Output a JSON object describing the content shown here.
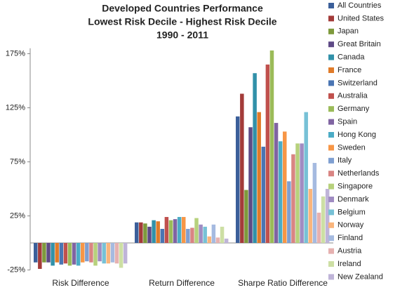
{
  "chart_data": {
    "type": "bar",
    "title": [
      "Developed Countries Performance",
      "Lowest Risk Decile - Highest Risk Decile",
      "1990 - 2011"
    ],
    "categories": [
      "Risk Difference",
      "Return Difference",
      "Sharpe Ratio Difference"
    ],
    "ylim": [
      -25,
      180
    ],
    "yticks": [
      {
        "value": -25,
        "label": "-25%"
      },
      {
        "value": 25,
        "label": "25%"
      },
      {
        "value": 75,
        "label": "75%"
      },
      {
        "value": 125,
        "label": "125%"
      },
      {
        "value": 175,
        "label": "175%"
      }
    ],
    "grid": false,
    "legend": "right",
    "series": [
      {
        "name": "All Countries",
        "color": "#3b5f9a",
        "values": [
          -18,
          19,
          117
        ]
      },
      {
        "name": "United States",
        "color": "#a33b39",
        "values": [
          -24,
          19,
          138
        ]
      },
      {
        "name": "Japan",
        "color": "#7e9a3c",
        "values": [
          -18,
          18,
          49
        ]
      },
      {
        "name": "Great Britain",
        "color": "#5e4a86",
        "values": [
          -18,
          15,
          107
        ]
      },
      {
        "name": "Canada",
        "color": "#3191a9",
        "values": [
          -21,
          21,
          157
        ]
      },
      {
        "name": "France",
        "color": "#e07b29",
        "values": [
          -18,
          20,
          121
        ]
      },
      {
        "name": "Switzerland",
        "color": "#4a75b3",
        "values": [
          -20,
          13,
          89
        ]
      },
      {
        "name": "Australia",
        "color": "#c0504d",
        "values": [
          -19,
          24,
          165
        ]
      },
      {
        "name": "Germany",
        "color": "#9bbb59",
        "values": [
          -21,
          21,
          178
        ]
      },
      {
        "name": "Spain",
        "color": "#8064a2",
        "values": [
          -20,
          22,
          111
        ]
      },
      {
        "name": "Hong Kong",
        "color": "#4bacc6",
        "values": [
          -21,
          24,
          94
        ]
      },
      {
        "name": "Sweden",
        "color": "#f79646",
        "values": [
          -18,
          24,
          103
        ]
      },
      {
        "name": "Italy",
        "color": "#7f9fd1",
        "values": [
          -17,
          13,
          57
        ]
      },
      {
        "name": "Netherlands",
        "color": "#d98583",
        "values": [
          -18,
          14,
          82
        ]
      },
      {
        "name": "Singapore",
        "color": "#b7d17c",
        "values": [
          -21,
          23,
          92
        ]
      },
      {
        "name": "Denmark",
        "color": "#a08cc2",
        "values": [
          -17,
          17,
          92
        ]
      },
      {
        "name": "Belgium",
        "color": "#77c1d6",
        "values": [
          -19,
          15,
          121
        ]
      },
      {
        "name": "Norway",
        "color": "#fab57c",
        "values": [
          -19,
          6,
          50
        ]
      },
      {
        "name": "Finland",
        "color": "#a5bae0",
        "values": [
          -18,
          17,
          74
        ]
      },
      {
        "name": "Austria",
        "color": "#e6b1b0",
        "values": [
          -19,
          5,
          28
        ]
      },
      {
        "name": "Ireland",
        "color": "#cddfa4",
        "values": [
          -23,
          15,
          43
        ]
      },
      {
        "name": "New Zealand",
        "color": "#bfb4d8",
        "values": [
          -19,
          4,
          50
        ]
      }
    ]
  }
}
